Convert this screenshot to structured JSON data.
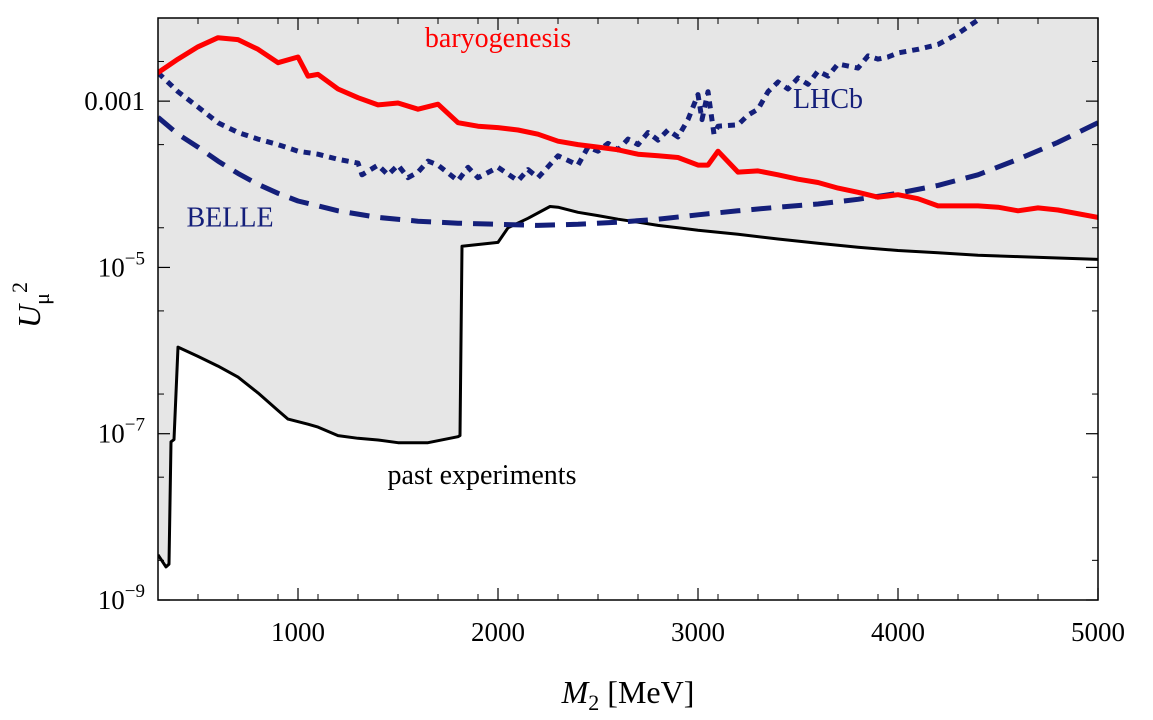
{
  "chart_data": {
    "type": "line",
    "xlabel": {
      "symbol": "M",
      "subscript": "2",
      "unit": "[MeV]"
    },
    "ylabel": {
      "symbol": "U",
      "subscript": "μ",
      "superscript": "2"
    },
    "xlim": [
      300,
      5000
    ],
    "ylim": [
      1e-09,
      0.01
    ],
    "yscale": "log",
    "grid": false,
    "x_ticks": [
      {
        "value": 1000,
        "label": "1000"
      },
      {
        "value": 2000,
        "label": "2000"
      },
      {
        "value": 3000,
        "label": "3000"
      },
      {
        "value": 4000,
        "label": "4000"
      },
      {
        "value": 5000,
        "label": "5000"
      }
    ],
    "y_ticks": [
      {
        "value": 1e-09,
        "base": "10",
        "exp": "−9",
        "label": ""
      },
      {
        "value": 1e-07,
        "base": "10",
        "exp": "−7",
        "label": ""
      },
      {
        "value": 1e-05,
        "base": "10",
        "exp": "−5",
        "label": ""
      },
      {
        "value": 0.001,
        "base": "",
        "exp": "",
        "label": "0.001"
      }
    ],
    "colors": {
      "baryogenesis": "#ff0000",
      "lhcb": "#141f7a",
      "belle": "#141f7a",
      "past": "#000000",
      "region_fill": "#e6e6e6"
    },
    "annotations": [
      {
        "id": "baryogenesis",
        "text": "baryogenesis",
        "x": 2000,
        "y": 0.0045
      },
      {
        "id": "lhcb",
        "text": "LHCb",
        "x": 3650,
        "y": 0.00083
      },
      {
        "id": "belle",
        "text": "BELLE",
        "x": 660,
        "y": 3.1e-05
      },
      {
        "id": "past",
        "text": "past experiments",
        "x": 1920,
        "y": 2.5e-08
      }
    ],
    "series": [
      {
        "id": "past",
        "style": "solid",
        "x": [
          300,
          340,
          355,
          365,
          380,
          400,
          500,
          600,
          700,
          800,
          900,
          950,
          1050,
          1100,
          1200,
          1300,
          1400,
          1500,
          1650,
          1800,
          1810,
          1820,
          2000,
          2050,
          2150,
          2260,
          2300,
          2400,
          2500,
          2600,
          2700,
          2800,
          2900,
          3000,
          3200,
          3400,
          3600,
          3800,
          4000,
          4200,
          4400,
          4600,
          4800,
          5000
        ],
        "y": [
          3.5e-09,
          2.5e-09,
          2.7e-09,
          8e-08,
          8.5e-08,
          1.1e-06,
          8.5e-07,
          6.5e-07,
          4.8e-07,
          3.1e-07,
          1.9e-07,
          1.5e-07,
          1.3e-07,
          1.2e-07,
          9.5e-08,
          8.8e-08,
          8.4e-08,
          7.8e-08,
          7.8e-08,
          9.2e-08,
          9.5e-08,
          1.8e-05,
          2e-05,
          3e-05,
          3.9e-05,
          5.4e-05,
          5.3e-05,
          4.6e-05,
          4.2e-05,
          3.8e-05,
          3.5e-05,
          3.2e-05,
          3e-05,
          2.8e-05,
          2.5e-05,
          2.2e-05,
          1.95e-05,
          1.75e-05,
          1.6e-05,
          1.5e-05,
          1.4e-05,
          1.35e-05,
          1.3e-05,
          1.25e-05
        ]
      },
      {
        "id": "belle",
        "style": "dashed",
        "x": [
          300,
          400,
          500,
          600,
          700,
          800,
          900,
          1000,
          1200,
          1400,
          1600,
          1800,
          2000,
          2200,
          2400,
          2600,
          2800,
          3000,
          3200,
          3400,
          3600,
          3800,
          4000,
          4200,
          4400,
          4600,
          4800,
          5000
        ],
        "y": [
          0.00064,
          0.0004,
          0.00028,
          0.00019,
          0.000135,
          0.0001,
          7.8e-05,
          6.3e-05,
          4.8e-05,
          4e-05,
          3.6e-05,
          3.4e-05,
          3.3e-05,
          3.2e-05,
          3.3e-05,
          3.5e-05,
          3.8e-05,
          4.3e-05,
          4.8e-05,
          5.3e-05,
          5.8e-05,
          6.6e-05,
          7.8e-05,
          9.7e-05,
          0.00013,
          0.0002,
          0.00032,
          0.00055
        ]
      },
      {
        "id": "lhcb",
        "style": "dotted",
        "x": [
          300,
          400,
          500,
          600,
          700,
          800,
          900,
          1000,
          1100,
          1200,
          1300,
          1320,
          1400,
          1450,
          1500,
          1550,
          1600,
          1650,
          1700,
          1800,
          1850,
          1900,
          2000,
          2100,
          2150,
          2200,
          2300,
          2400,
          2450,
          2500,
          2550,
          2600,
          2650,
          2700,
          2750,
          2800,
          2850,
          2900,
          2950,
          3000,
          3020,
          3050,
          3080,
          3100,
          3200,
          3250,
          3300,
          3350,
          3400,
          3450,
          3500,
          3550,
          3600,
          3650,
          3700,
          3800,
          3850,
          3900,
          3950,
          4000,
          4100,
          4200,
          4300,
          4400
        ],
        "y": [
          0.0022,
          0.0013,
          0.00085,
          0.00055,
          0.00042,
          0.00035,
          0.0003,
          0.00025,
          0.00023,
          0.0002,
          0.00018,
          0.00013,
          0.00017,
          0.00013,
          0.00017,
          0.00012,
          0.00014,
          0.00019,
          0.00017,
          0.00011,
          0.00016,
          0.00012,
          0.00016,
          0.00011,
          0.00015,
          0.00012,
          0.00022,
          0.00017,
          0.00028,
          0.00025,
          0.00031,
          0.00026,
          0.00035,
          0.0003,
          0.00042,
          0.00034,
          0.00045,
          0.00037,
          0.0006,
          0.0012,
          0.0006,
          0.0013,
          0.0004,
          0.0005,
          0.00052,
          0.00068,
          0.0008,
          0.0013,
          0.0017,
          0.0014,
          0.0019,
          0.0016,
          0.0023,
          0.002,
          0.0028,
          0.0025,
          0.0035,
          0.0032,
          0.0034,
          0.0038,
          0.0042,
          0.0048,
          0.0065,
          0.0095
        ]
      },
      {
        "id": "baryogenesis",
        "style": "solid",
        "x": [
          300,
          400,
          500,
          600,
          700,
          800,
          900,
          1000,
          1050,
          1100,
          1200,
          1300,
          1400,
          1500,
          1600,
          1700,
          1800,
          1900,
          2000,
          2100,
          2200,
          2300,
          2400,
          2500,
          2600,
          2700,
          2800,
          2900,
          3000,
          3050,
          3100,
          3200,
          3300,
          3400,
          3500,
          3600,
          3700,
          3800,
          3900,
          4000,
          4100,
          4200,
          4300,
          4400,
          4500,
          4600,
          4700,
          4800,
          5000
        ],
        "y": [
          0.0022,
          0.0032,
          0.0045,
          0.0058,
          0.0055,
          0.0042,
          0.0029,
          0.0034,
          0.002,
          0.0021,
          0.0014,
          0.0011,
          0.0009,
          0.00095,
          0.0008,
          0.00092,
          0.00055,
          0.0005,
          0.00048,
          0.00045,
          0.0004,
          0.00033,
          0.0003,
          0.00028,
          0.00026,
          0.00023,
          0.00022,
          0.00021,
          0.00017,
          0.00017,
          0.00025,
          0.00014,
          0.000145,
          0.00013,
          0.000115,
          0.000105,
          9e-05,
          8e-05,
          7e-05,
          7.5e-05,
          6.7e-05,
          5.5e-05,
          5.5e-05,
          5.5e-05,
          5.3e-05,
          4.8e-05,
          5.2e-05,
          4.9e-05,
          4e-05
        ]
      }
    ]
  }
}
